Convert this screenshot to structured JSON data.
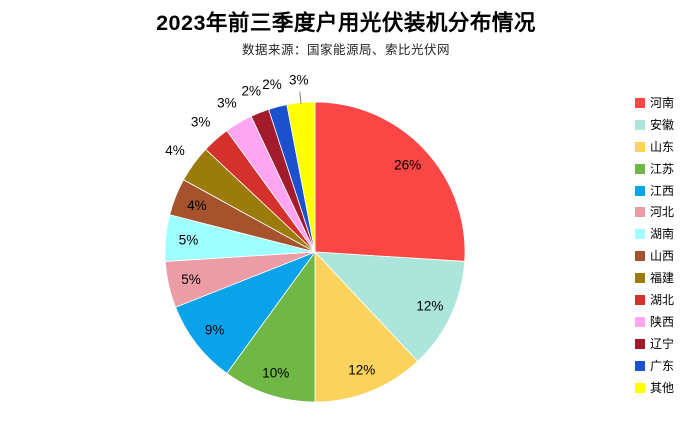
{
  "header": {
    "title": "2023年前三季度户用光伏装机分布情况",
    "subtitle": "数据来源：国家能源局、索比光伏网"
  },
  "chart_data": {
    "type": "pie",
    "title": "2023年前三季度户用光伏装机分布情况",
    "subtitle": "数据来源：国家能源局、索比光伏网",
    "unit": "%",
    "start_angle_deg": 0,
    "direction": "clockwise",
    "legend_position": "right",
    "label_format": "{value}%",
    "label_color": "#000000",
    "leader_line_color": "#7f7f7f",
    "slice_border_color": "#ffffff",
    "slices": [
      {
        "label": "河南",
        "value": 26,
        "color": "#FB4646",
        "label_inside": true,
        "leader": false
      },
      {
        "label": "安徽",
        "value": 12,
        "color": "#ACE5DA",
        "label_inside": true,
        "leader": false
      },
      {
        "label": "山东",
        "value": 12,
        "color": "#FBD35C",
        "label_inside": true,
        "leader": false
      },
      {
        "label": "江苏",
        "value": 10,
        "color": "#70B845",
        "label_inside": true,
        "leader": false
      },
      {
        "label": "江西",
        "value": 9,
        "color": "#0AA2E9",
        "label_inside": true,
        "leader": false
      },
      {
        "label": "河北",
        "value": 5,
        "color": "#EC9CA4",
        "label_inside": true,
        "leader": false
      },
      {
        "label": "湖南",
        "value": 5,
        "color": "#9FFEFE",
        "label_inside": true,
        "leader": false
      },
      {
        "label": "山西",
        "value": 4,
        "color": "#A5522D",
        "label_inside": true,
        "leader": false
      },
      {
        "label": "福建",
        "value": 4,
        "color": "#9A7B0B",
        "label_inside": false,
        "leader": false
      },
      {
        "label": "湖北",
        "value": 3,
        "color": "#D4302C",
        "label_inside": false,
        "leader": false
      },
      {
        "label": "陕西",
        "value": 3,
        "color": "#FFA5F1",
        "label_inside": false,
        "leader": false
      },
      {
        "label": "辽宁",
        "value": 2,
        "color": "#A31C2C",
        "label_inside": false,
        "leader": false
      },
      {
        "label": "广东",
        "value": 2,
        "color": "#1B51CE",
        "label_inside": false,
        "leader": false
      },
      {
        "label": "其他",
        "value": 3,
        "color": "#FFFF00",
        "label_inside": false,
        "leader": true
      }
    ]
  }
}
